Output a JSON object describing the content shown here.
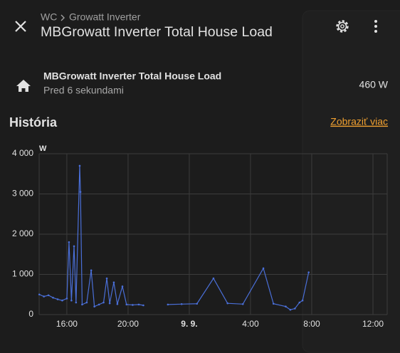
{
  "header": {
    "breadcrumb": [
      "WC",
      "Growatt Inverter"
    ],
    "title": "MBGrowatt Inverter Total House Load"
  },
  "entity": {
    "name": "MBGrowatt Inverter Total House Load",
    "last_changed": "Pred 6 sekundami",
    "state": "460 W"
  },
  "history": {
    "title": "História",
    "more_link": "Zobraziť viac"
  },
  "chart_data": {
    "type": "line",
    "ylabel": "W",
    "x": [
      14.2,
      14.5,
      14.8,
      15.1,
      15.4,
      15.7,
      16.0,
      16.14,
      16.3,
      16.47,
      16.6,
      16.84,
      16.89,
      17.0,
      17.3,
      17.59,
      17.8,
      18.1,
      18.4,
      18.61,
      18.8,
      19.07,
      19.3,
      19.63,
      19.9,
      20.3,
      20.7,
      21.0,
      21.5,
      22.6,
      23.5,
      24.5,
      25.58,
      26.5,
      27.5,
      28.84,
      29.5,
      30.3,
      30.6,
      30.9,
      31.2,
      31.4,
      31.8
    ],
    "series": [
      {
        "name": "MBGrowatt Inverter Total House Load",
        "color": "#4a6fd8",
        "values": [
          500,
          450,
          480,
          420,
          380,
          350,
          400,
          1800,
          350,
          1700,
          300,
          3700,
          3050,
          250,
          300,
          1100,
          200,
          250,
          300,
          900,
          280,
          800,
          260,
          700,
          250,
          240,
          250,
          230,
          null,
          250,
          260,
          270,
          900,
          280,
          260,
          1150,
          270,
          200,
          120,
          150,
          300,
          350,
          1050
        ]
      }
    ],
    "xlim": [
      14.19,
      36.93
    ],
    "xticks": [
      {
        "value": 16,
        "label": "16:00"
      },
      {
        "value": 20,
        "label": "20:00"
      },
      {
        "value": 24,
        "label": "9. 9."
      },
      {
        "value": 28,
        "label": "4:00"
      },
      {
        "value": 32,
        "label": "8:00"
      },
      {
        "value": 36,
        "label": "12:00"
      }
    ],
    "ylim": [
      0,
      4000
    ],
    "yticks": [
      0,
      {
        "value": 1000,
        "label": "1 000"
      },
      {
        "value": 2000,
        "label": "2 000"
      },
      {
        "value": 3000,
        "label": "3 000"
      },
      {
        "value": 4000,
        "label": "4 000"
      }
    ],
    "grid": true
  }
}
